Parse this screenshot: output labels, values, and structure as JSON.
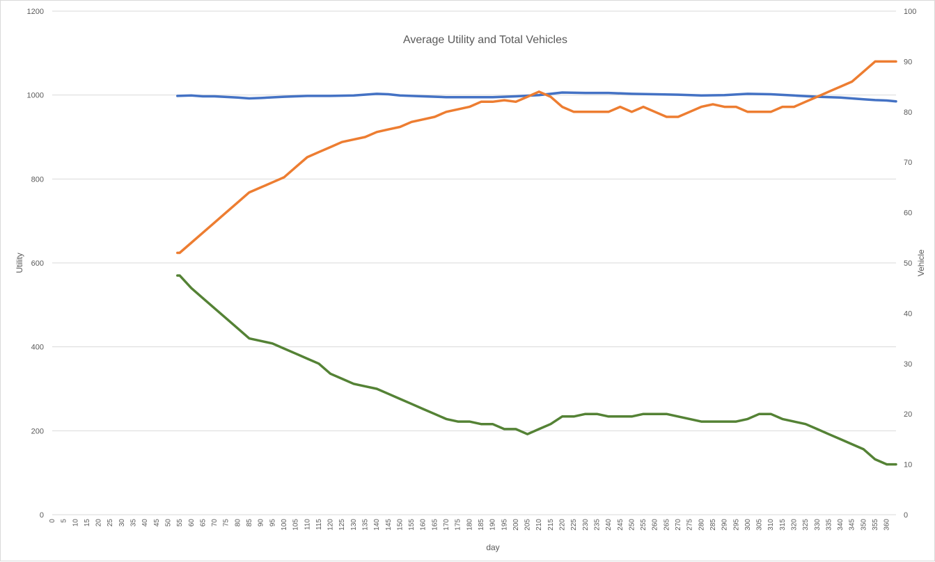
{
  "chart_data": {
    "type": "line",
    "title": "Average Utility and Total Vehicles",
    "xlabel": "day",
    "ylabel": "Utility",
    "y2label": "Vehicle",
    "xlim": [
      0,
      364
    ],
    "ylim": [
      0,
      1200
    ],
    "y2lim": [
      0,
      100
    ],
    "yticks": [
      0,
      200,
      400,
      600,
      800,
      1000,
      1200
    ],
    "y2ticks": [
      0,
      10,
      20,
      30,
      40,
      50,
      60,
      70,
      80,
      90,
      100
    ],
    "xticks": [
      0,
      5,
      10,
      15,
      20,
      25,
      30,
      35,
      40,
      45,
      50,
      55,
      60,
      65,
      70,
      75,
      80,
      85,
      90,
      95,
      100,
      105,
      110,
      115,
      120,
      125,
      130,
      135,
      140,
      145,
      150,
      155,
      160,
      165,
      170,
      175,
      180,
      185,
      190,
      195,
      200,
      205,
      210,
      215,
      220,
      225,
      230,
      235,
      240,
      245,
      250,
      255,
      260,
      265,
      270,
      275,
      280,
      285,
      290,
      295,
      300,
      305,
      310,
      315,
      320,
      325,
      330,
      335,
      340,
      345,
      350,
      355,
      360
    ],
    "grid": true,
    "legend": "none",
    "series": [
      {
        "axis": "left",
        "color": "#4472C4",
        "x": [
          54,
          60,
          65,
          70,
          80,
          85,
          90,
          100,
          110,
          120,
          130,
          140,
          145,
          150,
          160,
          170,
          180,
          190,
          200,
          210,
          220,
          230,
          240,
          250,
          260,
          270,
          280,
          290,
          300,
          310,
          320,
          330,
          340,
          345,
          350,
          355,
          360,
          364
        ],
        "values": [
          998,
          999,
          997,
          997,
          994,
          992,
          993,
          996,
          998,
          998,
          999,
          1003,
          1002,
          999,
          997,
          995,
          995,
          995,
          997,
          1000,
          1006,
          1005,
          1005,
          1003,
          1002,
          1001,
          999,
          1000,
          1003,
          1002,
          999,
          996,
          994,
          992,
          990,
          988,
          987,
          985
        ]
      },
      {
        "axis": "right",
        "color": "#ED7D31",
        "x": [
          54,
          55,
          60,
          65,
          70,
          75,
          80,
          85,
          90,
          95,
          100,
          105,
          110,
          115,
          120,
          125,
          130,
          135,
          140,
          145,
          150,
          155,
          160,
          165,
          170,
          175,
          180,
          185,
          190,
          195,
          200,
          205,
          210,
          215,
          220,
          225,
          230,
          235,
          240,
          245,
          250,
          255,
          260,
          265,
          270,
          275,
          280,
          285,
          290,
          295,
          300,
          305,
          310,
          315,
          320,
          325,
          330,
          335,
          340,
          345,
          350,
          355,
          360,
          364
        ],
        "values": [
          52,
          52,
          54,
          56,
          58,
          60,
          62,
          64,
          65,
          66,
          67,
          69,
          71,
          72,
          73,
          74,
          74.5,
          75,
          76,
          76.5,
          77,
          78,
          78.5,
          79,
          80,
          80.5,
          81,
          82,
          82,
          82.3,
          82,
          83,
          84,
          83,
          81,
          80,
          80,
          80,
          80,
          81,
          80,
          81,
          80,
          79,
          79,
          80,
          81,
          81.5,
          81,
          81,
          80,
          80,
          80,
          81,
          81,
          82,
          83,
          84,
          85,
          86,
          88,
          90,
          90,
          90
        ]
      },
      {
        "axis": "right",
        "color": "#548235",
        "x": [
          54,
          55,
          60,
          65,
          70,
          75,
          80,
          85,
          90,
          95,
          100,
          105,
          110,
          115,
          120,
          125,
          130,
          135,
          140,
          145,
          150,
          155,
          160,
          165,
          170,
          175,
          180,
          185,
          190,
          195,
          200,
          205,
          210,
          215,
          220,
          225,
          230,
          235,
          240,
          245,
          250,
          255,
          260,
          265,
          270,
          275,
          280,
          285,
          290,
          295,
          300,
          305,
          310,
          315,
          320,
          325,
          330,
          335,
          340,
          345,
          350,
          355,
          360,
          364
        ],
        "values": [
          47.5,
          47.5,
          45,
          43,
          41,
          39,
          37,
          35,
          34.5,
          34,
          33,
          32,
          31,
          30,
          28,
          27,
          26,
          25.5,
          25,
          24,
          23,
          22,
          21,
          20,
          19,
          18.5,
          18.5,
          18,
          18,
          17,
          17,
          16,
          17,
          18,
          19.5,
          19.5,
          20,
          20,
          19.5,
          19.5,
          19.5,
          20,
          20,
          20,
          19.5,
          19,
          18.5,
          18.5,
          18.5,
          18.5,
          19,
          20,
          20,
          19,
          18.5,
          18,
          17,
          16,
          15,
          14,
          13,
          11,
          10,
          10
        ]
      }
    ]
  }
}
